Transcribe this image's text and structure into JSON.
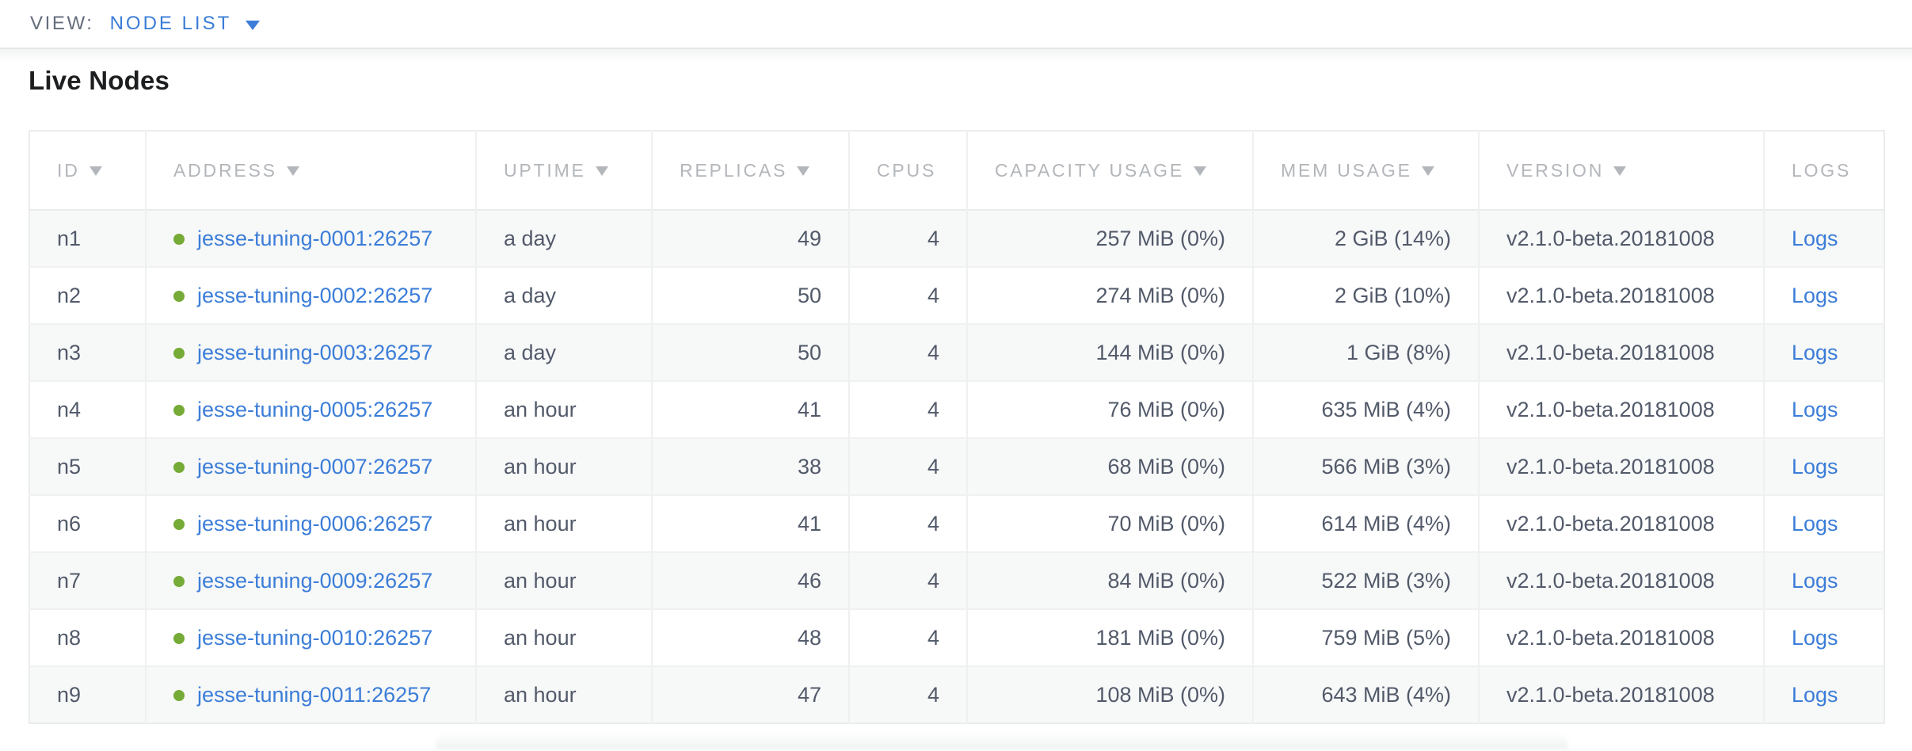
{
  "view_bar": {
    "label": "VIEW:",
    "selected_view": "NODE LIST"
  },
  "page": {
    "title": "Live Nodes"
  },
  "table": {
    "columns": [
      {
        "key": "id",
        "label": "ID",
        "sortable": true,
        "align": "left"
      },
      {
        "key": "address",
        "label": "ADDRESS",
        "sortable": true,
        "align": "left"
      },
      {
        "key": "uptime",
        "label": "UPTIME",
        "sortable": true,
        "align": "left"
      },
      {
        "key": "replicas",
        "label": "REPLICAS",
        "sortable": true,
        "align": "right"
      },
      {
        "key": "cpus",
        "label": "CPUS",
        "sortable": false,
        "align": "right"
      },
      {
        "key": "capacity_usage",
        "label": "CAPACITY USAGE",
        "sortable": true,
        "align": "right"
      },
      {
        "key": "mem_usage",
        "label": "MEM USAGE",
        "sortable": true,
        "align": "right"
      },
      {
        "key": "version",
        "label": "VERSION",
        "sortable": true,
        "align": "left"
      },
      {
        "key": "logs",
        "label": "LOGS",
        "sortable": false,
        "align": "left"
      }
    ],
    "rows": [
      {
        "id": "n1",
        "address": "jesse-tuning-0001:26257",
        "uptime": "a day",
        "replicas": "49",
        "cpus": "4",
        "capacity_usage": "257 MiB (0%)",
        "mem_usage": "2 GiB (14%)",
        "version": "v2.1.0-beta.20181008",
        "logs": "Logs",
        "status": "live"
      },
      {
        "id": "n2",
        "address": "jesse-tuning-0002:26257",
        "uptime": "a day",
        "replicas": "50",
        "cpus": "4",
        "capacity_usage": "274 MiB (0%)",
        "mem_usage": "2 GiB (10%)",
        "version": "v2.1.0-beta.20181008",
        "logs": "Logs",
        "status": "live"
      },
      {
        "id": "n3",
        "address": "jesse-tuning-0003:26257",
        "uptime": "a day",
        "replicas": "50",
        "cpus": "4",
        "capacity_usage": "144 MiB (0%)",
        "mem_usage": "1 GiB (8%)",
        "version": "v2.1.0-beta.20181008",
        "logs": "Logs",
        "status": "live"
      },
      {
        "id": "n4",
        "address": "jesse-tuning-0005:26257",
        "uptime": "an hour",
        "replicas": "41",
        "cpus": "4",
        "capacity_usage": "76 MiB (0%)",
        "mem_usage": "635 MiB (4%)",
        "version": "v2.1.0-beta.20181008",
        "logs": "Logs",
        "status": "live"
      },
      {
        "id": "n5",
        "address": "jesse-tuning-0007:26257",
        "uptime": "an hour",
        "replicas": "38",
        "cpus": "4",
        "capacity_usage": "68 MiB (0%)",
        "mem_usage": "566 MiB (3%)",
        "version": "v2.1.0-beta.20181008",
        "logs": "Logs",
        "status": "live"
      },
      {
        "id": "n6",
        "address": "jesse-tuning-0006:26257",
        "uptime": "an hour",
        "replicas": "41",
        "cpus": "4",
        "capacity_usage": "70 MiB (0%)",
        "mem_usage": "614 MiB (4%)",
        "version": "v2.1.0-beta.20181008",
        "logs": "Logs",
        "status": "live"
      },
      {
        "id": "n7",
        "address": "jesse-tuning-0009:26257",
        "uptime": "an hour",
        "replicas": "46",
        "cpus": "4",
        "capacity_usage": "84 MiB (0%)",
        "mem_usage": "522 MiB (3%)",
        "version": "v2.1.0-beta.20181008",
        "logs": "Logs",
        "status": "live"
      },
      {
        "id": "n8",
        "address": "jesse-tuning-0010:26257",
        "uptime": "an hour",
        "replicas": "48",
        "cpus": "4",
        "capacity_usage": "181 MiB (0%)",
        "mem_usage": "759 MiB (5%)",
        "version": "v2.1.0-beta.20181008",
        "logs": "Logs",
        "status": "live"
      },
      {
        "id": "n9",
        "address": "jesse-tuning-0011:26257",
        "uptime": "an hour",
        "replicas": "47",
        "cpus": "4",
        "capacity_usage": "108 MiB (0%)",
        "mem_usage": "643 MiB (4%)",
        "version": "v2.1.0-beta.20181008",
        "logs": "Logs",
        "status": "live"
      }
    ]
  },
  "colors": {
    "link_blue": "#3b7dd8",
    "live_green": "#76ab37",
    "header_gray": "#b3b6ba",
    "text_dark": "#525a6a"
  }
}
